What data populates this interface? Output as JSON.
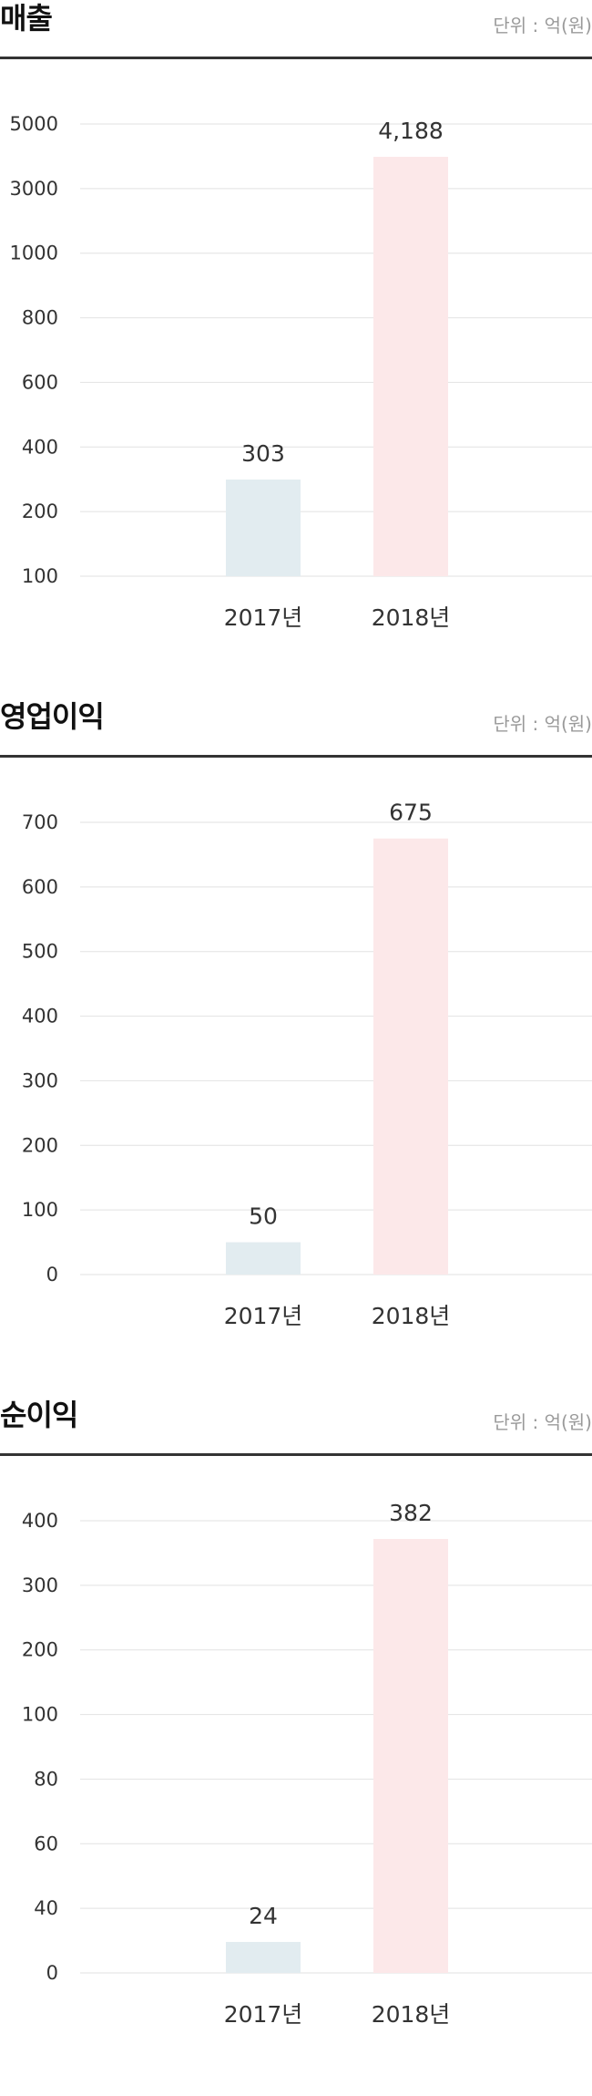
{
  "chart_data": [
    {
      "type": "bar",
      "title": "매출",
      "unit_label": "단위 : 억(원)",
      "categories": [
        "2017년",
        "2018년"
      ],
      "values": [
        303,
        4188
      ],
      "value_labels": [
        "303",
        "4,188"
      ],
      "y_ticks": [
        "5000",
        "3000",
        "1000",
        "800",
        "600",
        "400",
        "200",
        "100"
      ],
      "y_scale": "non-linear (broken axis)",
      "grid": true,
      "colors": [
        "#e2ecf0",
        "#fce8e9"
      ]
    },
    {
      "type": "bar",
      "title": "영업이익",
      "unit_label": "단위 : 억(원)",
      "categories": [
        "2017년",
        "2018년"
      ],
      "values": [
        50,
        675
      ],
      "value_labels": [
        "50",
        "675"
      ],
      "y_ticks": [
        "700",
        "600",
        "500",
        "400",
        "300",
        "200",
        "100",
        "0"
      ],
      "ylim": [
        0,
        700
      ],
      "grid": true,
      "colors": [
        "#e2ecf0",
        "#fce8e9"
      ]
    },
    {
      "type": "bar",
      "title": "순이익",
      "unit_label": "단위 : 억(원)",
      "categories": [
        "2017년",
        "2018년"
      ],
      "values": [
        24,
        382
      ],
      "value_labels": [
        "24",
        "382"
      ],
      "y_ticks": [
        "400",
        "300",
        "200",
        "100",
        "80",
        "60",
        "40",
        "0"
      ],
      "y_scale": "non-linear (broken axis)",
      "grid": true,
      "colors": [
        "#e2ecf0",
        "#fce8e9"
      ]
    }
  ]
}
